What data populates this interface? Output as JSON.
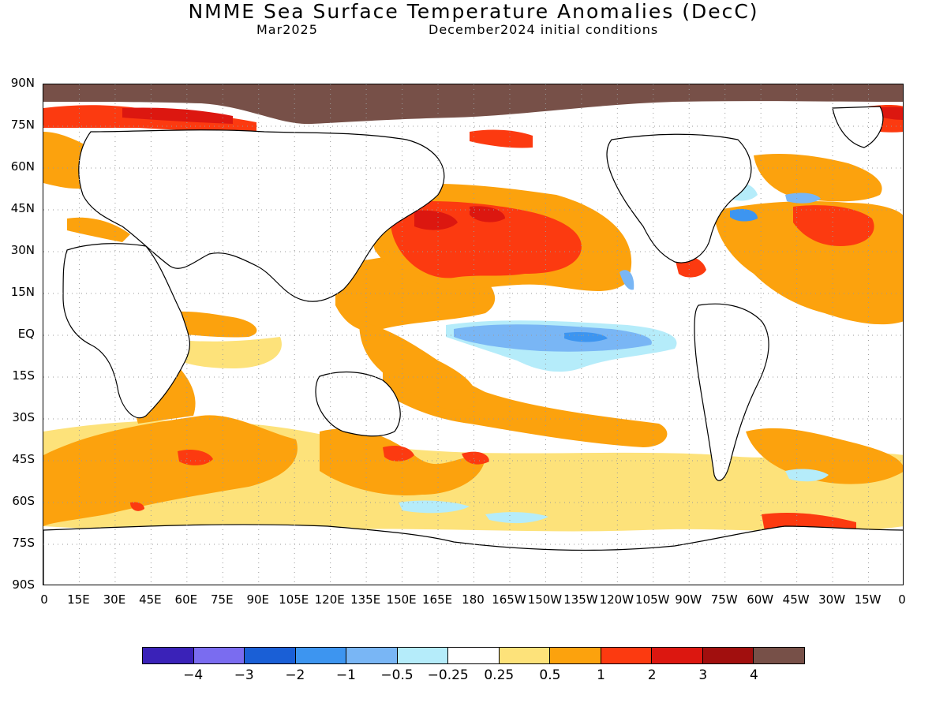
{
  "title": "NMME Sea Surface Temperature Anomalies (DecC)",
  "subtitle_left": "Mar2025",
  "subtitle_right": "December2024 initial conditions",
  "latitude_labels": [
    "90N",
    "75N",
    "60N",
    "45N",
    "30N",
    "15N",
    "EQ",
    "15S",
    "30S",
    "45S",
    "60S",
    "75S",
    "90S"
  ],
  "longitude_labels": [
    "0",
    "15E",
    "30E",
    "45E",
    "60E",
    "75E",
    "90E",
    "105E",
    "120E",
    "135E",
    "150E",
    "165E",
    "180",
    "165W",
    "150W",
    "135W",
    "120W",
    "105W",
    "90W",
    "75W",
    "60W",
    "45W",
    "30W",
    "15W",
    "0"
  ],
  "colorbar": {
    "colors": [
      "#3a22b8",
      "#7a6cf0",
      "#1a5fd6",
      "#3d95f0",
      "#79b6f5",
      "#b5ecfa",
      "#ffffff",
      "#fde27a",
      "#fca20d",
      "#fc3a10",
      "#dc1710",
      "#a10f0e",
      "#775048"
    ],
    "labels": [
      "−4",
      "−3",
      "−2",
      "−1",
      "−0.5",
      "−0.25",
      "0.25",
      "0.5",
      "1",
      "2",
      "3",
      "4"
    ]
  },
  "map": {
    "land_color": "#ffffff",
    "polar_land_color": "#775048",
    "grid": "dotted"
  }
}
